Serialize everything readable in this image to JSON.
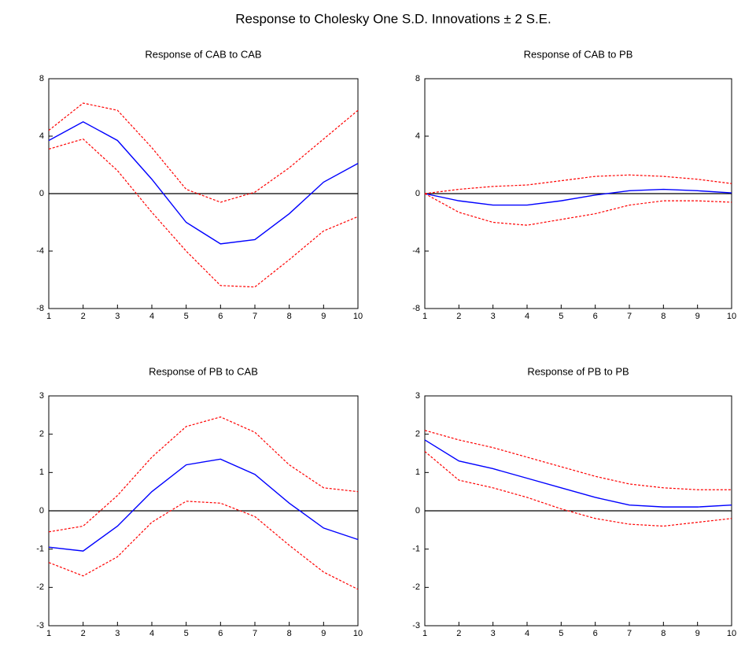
{
  "title": "Response to Cholesky One S.D. Innovations ± 2 S.E.",
  "chart_data": [
    {
      "type": "line",
      "title": "Response of CAB to CAB",
      "x": [
        1,
        2,
        3,
        4,
        5,
        6,
        7,
        8,
        9,
        10
      ],
      "xlim": [
        1,
        10
      ],
      "xticks": [
        1,
        2,
        3,
        4,
        5,
        6,
        7,
        8,
        9,
        10
      ],
      "ylim": [
        -8,
        8
      ],
      "yticks": [
        -8,
        -4,
        0,
        4,
        8
      ],
      "series": [
        {
          "color": "#0000ff",
          "dashed": false,
          "values": [
            3.7,
            5.0,
            3.7,
            1.0,
            -2.0,
            -3.5,
            -3.2,
            -1.4,
            0.8,
            2.1
          ]
        },
        {
          "color": "#ff0000",
          "dashed": true,
          "values": [
            4.4,
            6.3,
            5.8,
            3.2,
            0.3,
            -0.6,
            0.1,
            1.8,
            3.8,
            5.8
          ]
        },
        {
          "color": "#ff0000",
          "dashed": true,
          "values": [
            3.1,
            3.8,
            1.6,
            -1.3,
            -4.0,
            -6.4,
            -6.5,
            -4.6,
            -2.6,
            -1.6
          ]
        }
      ]
    },
    {
      "type": "line",
      "title": "Response of CAB to PB",
      "x": [
        1,
        2,
        3,
        4,
        5,
        6,
        7,
        8,
        9,
        10
      ],
      "xlim": [
        1,
        10
      ],
      "xticks": [
        1,
        2,
        3,
        4,
        5,
        6,
        7,
        8,
        9,
        10
      ],
      "ylim": [
        -8,
        8
      ],
      "yticks": [
        -8,
        -4,
        0,
        4,
        8
      ],
      "series": [
        {
          "color": "#0000ff",
          "dashed": false,
          "values": [
            0,
            -0.5,
            -0.8,
            -0.8,
            -0.5,
            -0.1,
            0.2,
            0.3,
            0.2,
            0.05
          ]
        },
        {
          "color": "#ff0000",
          "dashed": true,
          "values": [
            0,
            0.3,
            0.5,
            0.6,
            0.9,
            1.2,
            1.3,
            1.2,
            1.0,
            0.7
          ]
        },
        {
          "color": "#ff0000",
          "dashed": true,
          "values": [
            0,
            -1.3,
            -2.0,
            -2.2,
            -1.8,
            -1.4,
            -0.8,
            -0.5,
            -0.5,
            -0.6
          ]
        }
      ]
    },
    {
      "type": "line",
      "title": "Response of PB to CAB",
      "x": [
        1,
        2,
        3,
        4,
        5,
        6,
        7,
        8,
        9,
        10
      ],
      "xlim": [
        1,
        10
      ],
      "xticks": [
        1,
        2,
        3,
        4,
        5,
        6,
        7,
        8,
        9,
        10
      ],
      "ylim": [
        -3,
        3
      ],
      "yticks": [
        -3,
        -2,
        -1,
        0,
        1,
        2,
        3
      ],
      "series": [
        {
          "color": "#0000ff",
          "dashed": false,
          "values": [
            -0.95,
            -1.05,
            -0.4,
            0.5,
            1.2,
            1.35,
            0.95,
            0.2,
            -0.45,
            -0.75
          ]
        },
        {
          "color": "#ff0000",
          "dashed": true,
          "values": [
            -0.55,
            -0.4,
            0.4,
            1.4,
            2.2,
            2.45,
            2.05,
            1.2,
            0.6,
            0.5
          ]
        },
        {
          "color": "#ff0000",
          "dashed": true,
          "values": [
            -1.35,
            -1.7,
            -1.2,
            -0.3,
            0.25,
            0.2,
            -0.15,
            -0.9,
            -1.6,
            -2.05
          ]
        }
      ]
    },
    {
      "type": "line",
      "title": "Response of PB to PB",
      "x": [
        1,
        2,
        3,
        4,
        5,
        6,
        7,
        8,
        9,
        10
      ],
      "xlim": [
        1,
        10
      ],
      "xticks": [
        1,
        2,
        3,
        4,
        5,
        6,
        7,
        8,
        9,
        10
      ],
      "ylim": [
        -3,
        3
      ],
      "yticks": [
        -3,
        -2,
        -1,
        0,
        1,
        2,
        3
      ],
      "series": [
        {
          "color": "#0000ff",
          "dashed": false,
          "values": [
            1.85,
            1.3,
            1.1,
            0.85,
            0.6,
            0.35,
            0.15,
            0.1,
            0.1,
            0.15
          ]
        },
        {
          "color": "#ff0000",
          "dashed": true,
          "values": [
            2.1,
            1.85,
            1.65,
            1.4,
            1.15,
            0.9,
            0.7,
            0.6,
            0.55,
            0.55
          ]
        },
        {
          "color": "#ff0000",
          "dashed": true,
          "values": [
            1.55,
            0.8,
            0.6,
            0.35,
            0.05,
            -0.2,
            -0.35,
            -0.4,
            -0.3,
            -0.2
          ]
        }
      ]
    }
  ]
}
